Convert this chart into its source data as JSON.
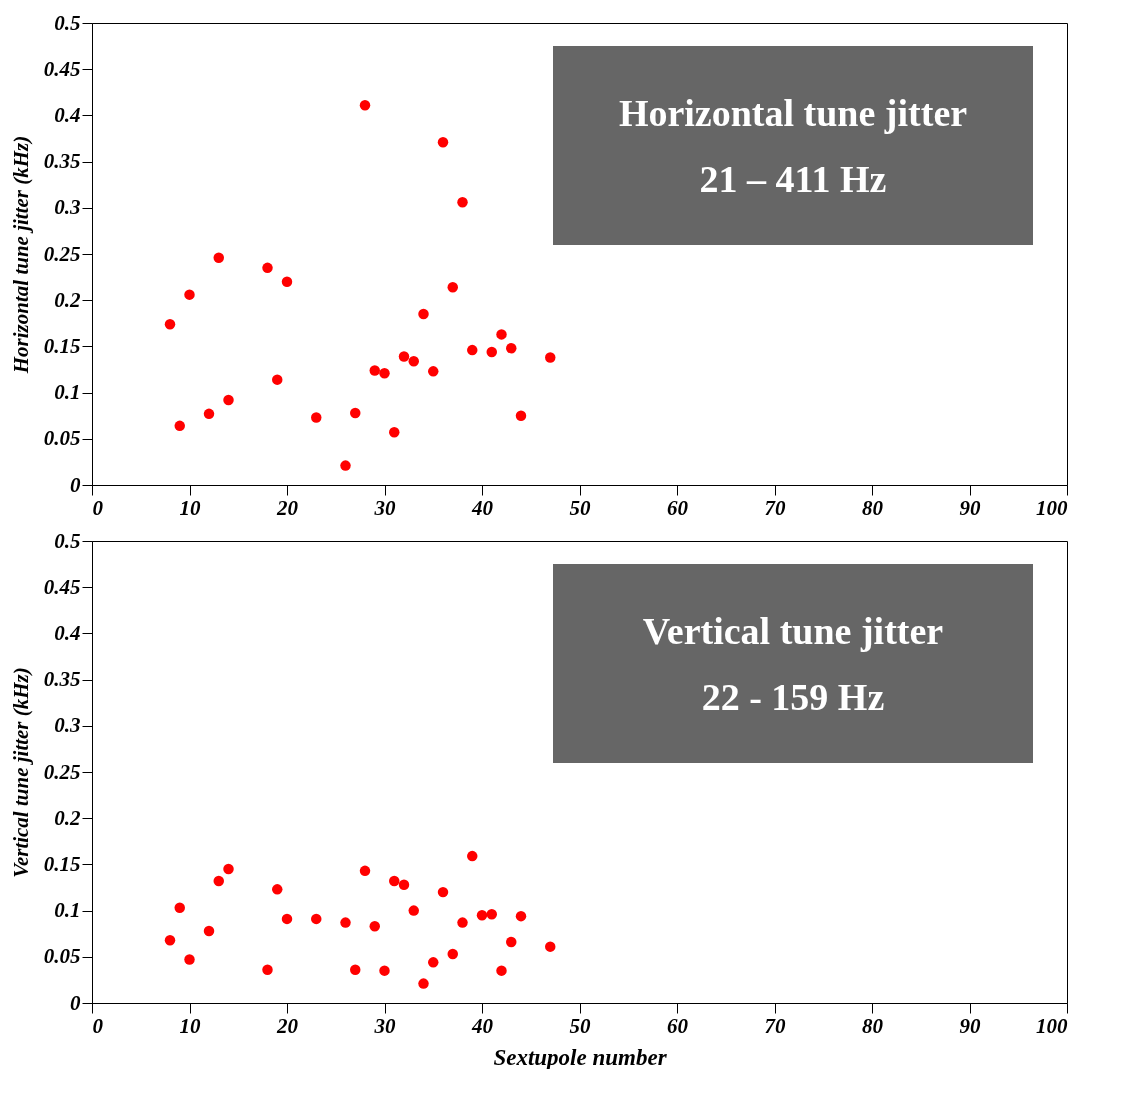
{
  "chart_data": [
    {
      "type": "scatter",
      "ylabel": "Horizontal tune jitter (kHz)",
      "annotations": [
        "Horizontal tune jitter",
        "21 – 411 Hz"
      ],
      "marker": "circle",
      "x": [
        8,
        9,
        10,
        12,
        13,
        14,
        18,
        19,
        20,
        23,
        26,
        27,
        28,
        29,
        30,
        31,
        32,
        33,
        34,
        35,
        36,
        37,
        38,
        39,
        41,
        42,
        43,
        44,
        47
      ],
      "series": [
        {
          "color": "#ff0000",
          "values": [
            0.174,
            0.064,
            0.206,
            0.077,
            0.246,
            0.092,
            0.235,
            0.114,
            0.22,
            0.073,
            0.021,
            0.078,
            0.411,
            0.124,
            0.121,
            0.057,
            0.139,
            0.134,
            0.185,
            0.123,
            0.371,
            0.214,
            0.306,
            0.146,
            0.144,
            0.163,
            0.148,
            0.075,
            0.138
          ]
        }
      ],
      "xlim": [
        0,
        100
      ],
      "xticks": [
        0,
        10,
        20,
        30,
        40,
        50,
        60,
        70,
        80,
        90,
        100
      ],
      "ylim": [
        0,
        0.5
      ],
      "yticks": [
        0,
        0.05,
        0.1,
        0.15,
        0.2,
        0.25,
        0.3,
        0.35,
        0.4,
        0.45,
        0.5
      ]
    },
    {
      "type": "scatter",
      "xlabel": "Sextupole number",
      "ylabel": "Vertical tune jitter (kHz)",
      "annotations": [
        "Vertical tune jitter",
        "22 - 159 Hz"
      ],
      "marker": "circle",
      "x": [
        8,
        9,
        10,
        12,
        13,
        14,
        18,
        19,
        20,
        23,
        26,
        27,
        28,
        29,
        30,
        31,
        32,
        33,
        34,
        35,
        36,
        37,
        38,
        39,
        40,
        41,
        42,
        43,
        44,
        47
      ],
      "series": [
        {
          "color": "#ff0000",
          "values": [
            0.068,
            0.103,
            0.047,
            0.078,
            0.132,
            0.145,
            0.036,
            0.123,
            0.091,
            0.091,
            0.087,
            0.036,
            0.143,
            0.083,
            0.035,
            0.132,
            0.128,
            0.1,
            0.021,
            0.044,
            0.12,
            0.053,
            0.087,
            0.159,
            0.095,
            0.096,
            0.035,
            0.066,
            0.094,
            0.061
          ]
        }
      ],
      "xlim": [
        0,
        100
      ],
      "xticks": [
        0,
        10,
        20,
        30,
        40,
        50,
        60,
        70,
        80,
        90,
        100
      ],
      "ylim": [
        0,
        0.5
      ],
      "yticks": [
        0,
        0.05,
        0.1,
        0.15,
        0.2,
        0.25,
        0.3,
        0.35,
        0.4,
        0.45,
        0.5
      ]
    }
  ]
}
